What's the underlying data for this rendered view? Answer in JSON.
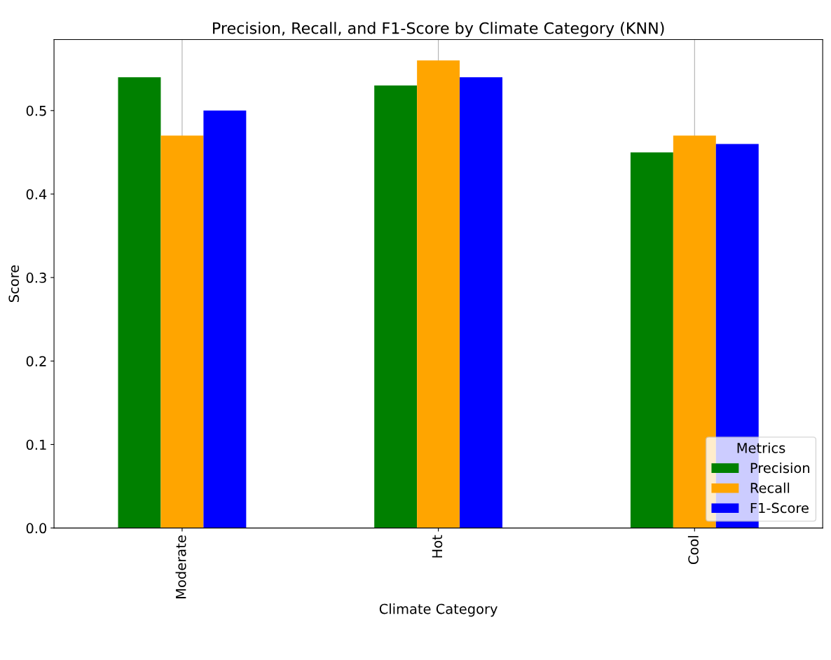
{
  "chart_data": {
    "type": "bar",
    "title": "Precision, Recall, and F1-Score by Climate Category (KNN)",
    "xlabel": "Climate Category",
    "ylabel": "Score",
    "legend_title": "Metrics",
    "categories": [
      "Moderate",
      "Hot",
      "Cool"
    ],
    "series": [
      {
        "name": "Precision",
        "color": "#008000",
        "values": [
          0.54,
          0.53,
          0.45
        ]
      },
      {
        "name": "Recall",
        "color": "#ffa500",
        "values": [
          0.47,
          0.56,
          0.47
        ]
      },
      {
        "name": "F1-Score",
        "color": "#0000ff",
        "values": [
          0.5,
          0.54,
          0.46
        ]
      }
    ],
    "ylim": [
      0,
      0.585
    ],
    "yticks": [
      {
        "value": 0,
        "label": "0.0"
      },
      0.1,
      0.2,
      0.3,
      0.4,
      0.5
    ],
    "grid": "x",
    "legend": "lower right"
  }
}
